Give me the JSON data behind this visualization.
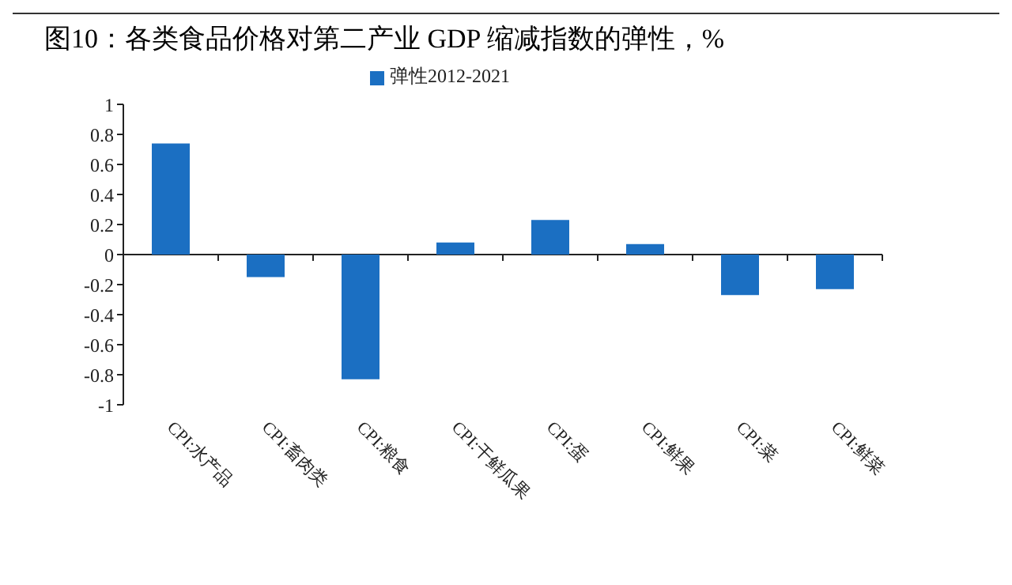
{
  "chart_data": {
    "type": "bar",
    "title": "图10：各类食品价格对第二产业 GDP 缩减指数的弹性，%",
    "categories": [
      "CPI:水产品",
      "CPI:畜肉类",
      "CPI:粮食",
      "CPI:干鲜瓜果",
      "CPI:蛋",
      "CPI:鲜果",
      "CPI:菜",
      "CPI:鲜菜"
    ],
    "series": [
      {
        "name": "弹性2012-2021",
        "color": "#1b6fc2",
        "values": [
          0.74,
          -0.15,
          -0.83,
          0.08,
          0.23,
          0.07,
          -0.27,
          -0.23
        ]
      }
    ],
    "ylim": [
      -1,
      1
    ],
    "yticks": [
      -1,
      -0.8,
      -0.6,
      -0.4,
      -0.2,
      0,
      0.2,
      0.4,
      0.6,
      0.8,
      1
    ],
    "legend": "top"
  }
}
